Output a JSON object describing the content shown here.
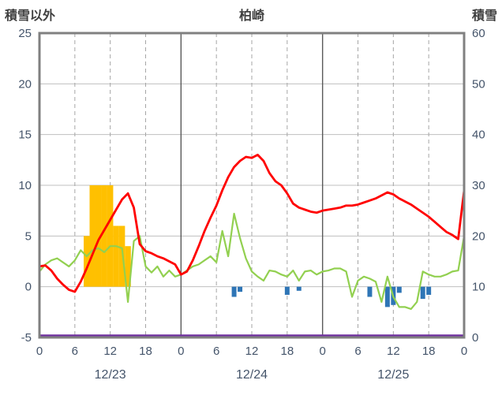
{
  "header": {
    "left_axis_label": "積雪以外",
    "title": "柏崎",
    "right_axis_label": "積雪"
  },
  "colors": {
    "red_line": "#FF0000",
    "green_line": "#92D050",
    "purple_line": "#7030A0",
    "orange_bars": "#FFC000",
    "blue_bars": "#2E75B6",
    "grid": "#BFBFBF",
    "dashed_grid": "#A6A6A6",
    "day_grid": "#595959",
    "border": "#808080",
    "tick_text": "#44546A",
    "title_text": "#404040"
  },
  "chart_data": {
    "type": "line",
    "title": "柏崎",
    "x_unit": "hour",
    "x_range_hours": [
      0,
      72
    ],
    "left_axis": {
      "label": "積雪以外",
      "min": -5,
      "max": 25,
      "ticks": [
        25,
        20,
        15,
        10,
        5,
        0,
        -5
      ],
      "grid_values": [
        20,
        15,
        10,
        5,
        0
      ]
    },
    "right_axis": {
      "label": "積雪",
      "min": 0,
      "max": 60,
      "ticks": [
        60,
        50,
        40,
        30,
        20,
        10,
        0
      ]
    },
    "x_ticks": [
      {
        "hour": 0,
        "label": "0"
      },
      {
        "hour": 6,
        "label": "6"
      },
      {
        "hour": 12,
        "label": "12"
      },
      {
        "hour": 18,
        "label": "18"
      },
      {
        "hour": 24,
        "label": "0"
      },
      {
        "hour": 30,
        "label": "6"
      },
      {
        "hour": 36,
        "label": "12"
      },
      {
        "hour": 42,
        "label": "18"
      },
      {
        "hour": 48,
        "label": "0"
      },
      {
        "hour": 54,
        "label": "6"
      },
      {
        "hour": 60,
        "label": "12"
      },
      {
        "hour": 66,
        "label": "18"
      },
      {
        "hour": 72,
        "label": "0"
      }
    ],
    "date_labels": [
      {
        "hour": 12,
        "label": "12/23"
      },
      {
        "hour": 36,
        "label": "12/24"
      },
      {
        "hour": 60,
        "label": "12/25"
      }
    ],
    "series": [
      {
        "name": "red-line",
        "axis": "left",
        "values": [
          2.0,
          2.1,
          1.6,
          0.8,
          0.2,
          -0.3,
          -0.5,
          0.5,
          1.8,
          3.2,
          4.6,
          5.6,
          6.6,
          7.6,
          8.6,
          9.2,
          7.8,
          4.2,
          3.5,
          3.3,
          3.0,
          2.8,
          2.5,
          2.2,
          1.2,
          1.5,
          2.6,
          4.0,
          5.5,
          6.8,
          8.0,
          9.5,
          10.8,
          11.8,
          12.4,
          12.8,
          12.7,
          13.0,
          12.4,
          11.2,
          10.4,
          10.0,
          9.2,
          8.2,
          7.8,
          7.6,
          7.4,
          7.3,
          7.5,
          7.6,
          7.7,
          7.8,
          8.0,
          8.0,
          8.1,
          8.3,
          8.5,
          8.7,
          9.0,
          9.3,
          9.1,
          8.7,
          8.4,
          8.1,
          7.7,
          7.3,
          6.9,
          6.4,
          5.9,
          5.4,
          5.1,
          4.7,
          9.5
        ]
      },
      {
        "name": "green-line",
        "axis": "left",
        "values": [
          1.5,
          2.2,
          2.6,
          2.8,
          2.4,
          2.0,
          2.6,
          3.6,
          3.0,
          3.6,
          3.8,
          3.4,
          4.0,
          4.0,
          3.8,
          -1.5,
          4.5,
          5.0,
          2.0,
          1.4,
          2.0,
          1.0,
          1.6,
          1.0,
          1.2,
          1.6,
          2.0,
          2.2,
          2.6,
          3.0,
          2.4,
          5.5,
          3.0,
          7.2,
          4.8,
          2.8,
          1.5,
          1.0,
          0.6,
          1.6,
          1.5,
          1.2,
          1.0,
          1.6,
          0.6,
          1.5,
          1.6,
          1.2,
          1.5,
          1.6,
          1.8,
          1.8,
          1.5,
          -1.0,
          0.6,
          1.0,
          0.8,
          0.5,
          -1.5,
          1.0,
          -1.0,
          -2.0,
          -2.0,
          -2.2,
          -1.5,
          1.5,
          1.2,
          1.0,
          1.0,
          1.2,
          1.5,
          1.6,
          5.0
        ]
      },
      {
        "name": "purple-line",
        "axis": "right",
        "constant_value": 0
      }
    ],
    "bars": {
      "orange": [
        {
          "hour": 8,
          "value": 5
        },
        {
          "hour": 9,
          "value": 10
        },
        {
          "hour": 10,
          "value": 10
        },
        {
          "hour": 11,
          "value": 10
        },
        {
          "hour": 12,
          "value": 10
        },
        {
          "hour": 13,
          "value": 6
        },
        {
          "hour": 14,
          "value": 6
        },
        {
          "hour": 15,
          "value": 4
        }
      ],
      "blue": [
        {
          "hour": 33,
          "value": -1.0
        },
        {
          "hour": 34,
          "value": -0.5
        },
        {
          "hour": 42,
          "value": -0.8
        },
        {
          "hour": 44,
          "value": -0.4
        },
        {
          "hour": 56,
          "value": -1.0
        },
        {
          "hour": 59,
          "value": -2.0
        },
        {
          "hour": 60,
          "value": -1.8
        },
        {
          "hour": 61,
          "value": -0.6
        },
        {
          "hour": 65,
          "value": -1.2
        },
        {
          "hour": 66,
          "value": -0.8
        }
      ]
    },
    "legend": "none",
    "grid": "on"
  }
}
